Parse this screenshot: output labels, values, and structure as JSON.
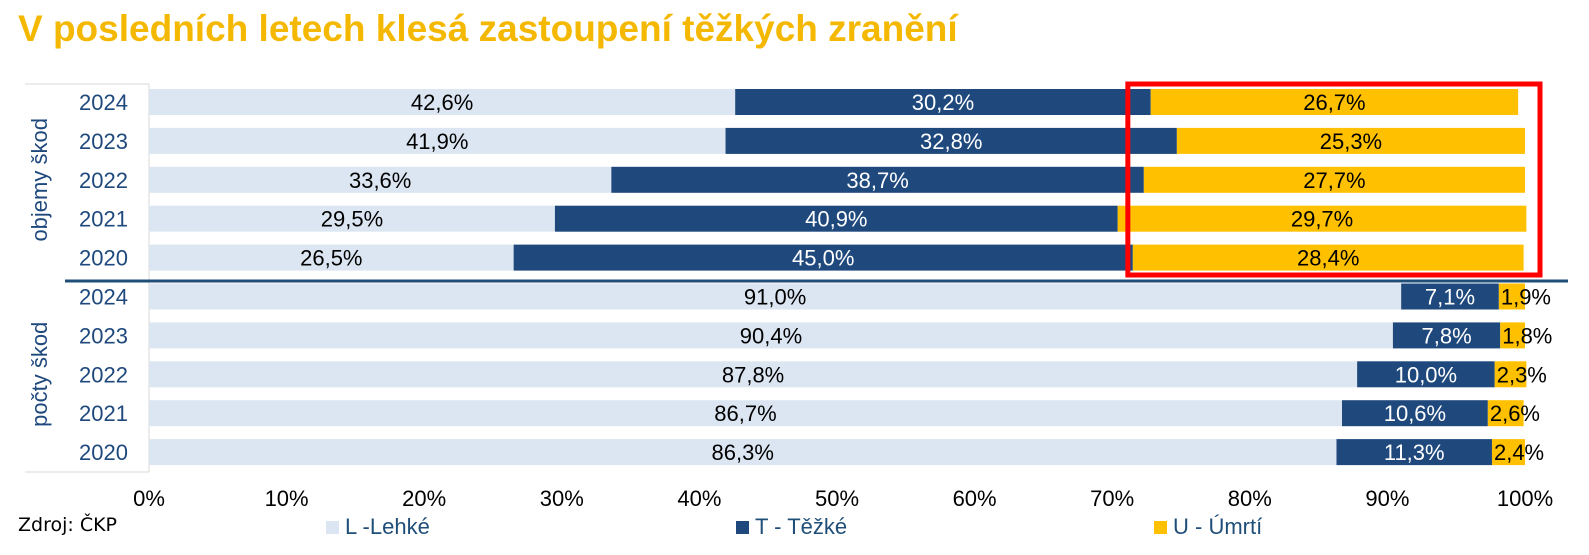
{
  "title": "V posledních letech klesá zastoupení těžkých zranění",
  "source": "Zdroj: ČKP",
  "colors": {
    "title": "#f5b800",
    "lehke": "#dce6f2",
    "tezke": "#1f497d",
    "umrti": "#ffc000",
    "highlight": "#ff0000",
    "axis_text": "#1f497d"
  },
  "legend": [
    {
      "label": "L -Lehké",
      "color": "#dce6f2"
    },
    {
      "label": "T - Těžké",
      "color": "#1f497d"
    },
    {
      "label": "U - Úmrtí",
      "color": "#ffc000"
    }
  ],
  "chart_data": {
    "type": "bar",
    "orientation": "horizontal",
    "stacked": "100%",
    "xlim": [
      0,
      100
    ],
    "x_tick_labels": [
      "0%",
      "10%",
      "20%",
      "30%",
      "40%",
      "50%",
      "60%",
      "70%",
      "80%",
      "90%",
      "100%"
    ],
    "series_names": [
      "L -Lehké",
      "T - Těžké",
      "U - Úmrtí"
    ],
    "groups": [
      {
        "name": "objemy škod",
        "rows": [
          {
            "year": "2024",
            "values": [
              42.6,
              30.2,
              26.7
            ],
            "labels": [
              "42,6%",
              "30,2%",
              "26,7%"
            ]
          },
          {
            "year": "2023",
            "values": [
              41.9,
              32.8,
              25.3
            ],
            "labels": [
              "41,9%",
              "32,8%",
              "25,3%"
            ]
          },
          {
            "year": "2022",
            "values": [
              33.6,
              38.7,
              27.7
            ],
            "labels": [
              "33,6%",
              "38,7%",
              "27,7%"
            ]
          },
          {
            "year": "2021",
            "values": [
              29.5,
              40.9,
              29.7
            ],
            "labels": [
              "29,5%",
              "40,9%",
              "29,7%"
            ]
          },
          {
            "year": "2020",
            "values": [
              26.5,
              45.0,
              28.4
            ],
            "labels": [
              "26,5%",
              "45,0%",
              "28,4%"
            ]
          }
        ]
      },
      {
        "name": "počty škod",
        "rows": [
          {
            "year": "2024",
            "values": [
              91.0,
              7.1,
              1.9
            ],
            "labels": [
              "91,0%",
              "7,1%",
              "1,9%"
            ]
          },
          {
            "year": "2023",
            "values": [
              90.4,
              7.8,
              1.8
            ],
            "labels": [
              "90,4%",
              "7,8%",
              "1,8%"
            ]
          },
          {
            "year": "2022",
            "values": [
              87.8,
              10.0,
              2.3
            ],
            "labels": [
              "87,8%",
              "10,0%",
              "2,3%"
            ]
          },
          {
            "year": "2021",
            "values": [
              86.7,
              10.6,
              2.6
            ],
            "labels": [
              "86,7%",
              "10,6%",
              "2,6%"
            ]
          },
          {
            "year": "2020",
            "values": [
              86.3,
              11.3,
              2.4
            ],
            "labels": [
              "86,3%",
              "11,3%",
              "2,4%"
            ]
          }
        ]
      }
    ],
    "highlight_range": [
      71.5,
      100
    ],
    "highlight_group": "objemy škod"
  }
}
